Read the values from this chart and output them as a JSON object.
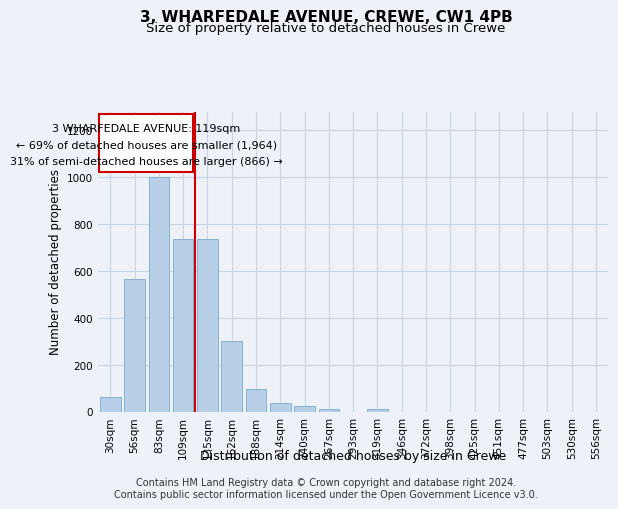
{
  "title": "3, WHARFEDALE AVENUE, CREWE, CW1 4PB",
  "subtitle": "Size of property relative to detached houses in Crewe",
  "xlabel": "Distribution of detached houses by size in Crewe",
  "ylabel": "Number of detached properties",
  "footer_line1": "Contains HM Land Registry data © Crown copyright and database right 2024.",
  "footer_line2": "Contains public sector information licensed under the Open Government Licence v3.0.",
  "bar_color": "#b8cfe8",
  "bar_edge_color": "#7aaad0",
  "annotation_box_color": "#ffffff",
  "annotation_box_edge": "#cc0000",
  "vline_color": "#cc0000",
  "grid_color": "#c8d4e4",
  "background_color": "#eef2f8",
  "categories": [
    "30sqm",
    "56sqm",
    "83sqm",
    "109sqm",
    "135sqm",
    "162sqm",
    "188sqm",
    "214sqm",
    "240sqm",
    "267sqm",
    "293sqm",
    "319sqm",
    "346sqm",
    "372sqm",
    "398sqm",
    "425sqm",
    "451sqm",
    "477sqm",
    "503sqm",
    "530sqm",
    "556sqm"
  ],
  "values": [
    60,
    565,
    1000,
    735,
    735,
    300,
    95,
    35,
    25,
    12,
    0,
    12,
    0,
    0,
    0,
    0,
    0,
    0,
    0,
    0,
    0
  ],
  "vline_x": 3.5,
  "annotation_text_line1": "3 WHARFEDALE AVENUE: 119sqm",
  "annotation_text_line2": "← 69% of detached houses are smaller (1,964)",
  "annotation_text_line3": "31% of semi-detached houses are larger (866) →",
  "ylim": [
    0,
    1280
  ],
  "yticks": [
    0,
    200,
    400,
    600,
    800,
    1000,
    1200
  ],
  "title_fontsize": 11,
  "subtitle_fontsize": 9.5,
  "axis_label_fontsize": 8.5,
  "tick_fontsize": 7.5,
  "annotation_fontsize": 8,
  "footer_fontsize": 7
}
